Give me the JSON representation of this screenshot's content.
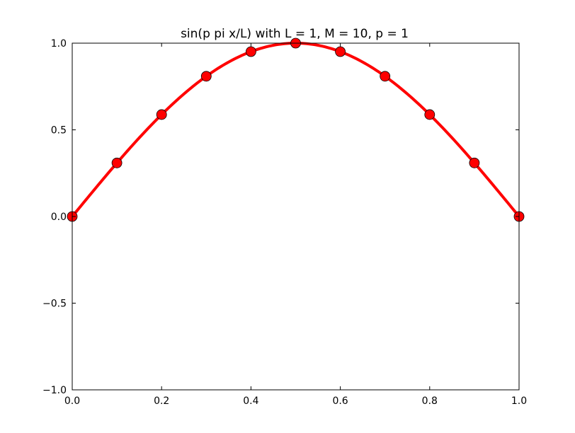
{
  "chart_data": {
    "type": "line",
    "title": "sin(p pi x/L) with L = 1, M = 10, p = 1",
    "xlabel": "",
    "ylabel": "",
    "xlim": [
      0.0,
      1.0
    ],
    "ylim": [
      -1.0,
      1.0
    ],
    "x_ticks": [
      0.0,
      0.2,
      0.4,
      0.6,
      0.8,
      1.0
    ],
    "x_tick_labels": [
      "0.0",
      "0.2",
      "0.4",
      "0.6",
      "0.8",
      "1.0"
    ],
    "y_ticks": [
      -1.0,
      -0.5,
      0.0,
      0.5,
      1.0
    ],
    "y_tick_labels": [
      "−1.0",
      "−0.5",
      "0.0",
      "0.5",
      "1.0"
    ],
    "grid": false,
    "series": [
      {
        "kind": "curve",
        "function": "sin(pi x)",
        "color": "#ff0000"
      },
      {
        "kind": "markers",
        "color": "#ff0000",
        "marker": "circle",
        "x": [
          0.0,
          0.1,
          0.2,
          0.3,
          0.4,
          0.5,
          0.6,
          0.7,
          0.8,
          0.9,
          1.0
        ],
        "y": [
          0.0,
          0.309,
          0.588,
          0.809,
          0.951,
          1.0,
          0.951,
          0.809,
          0.588,
          0.309,
          0.0
        ]
      }
    ]
  }
}
